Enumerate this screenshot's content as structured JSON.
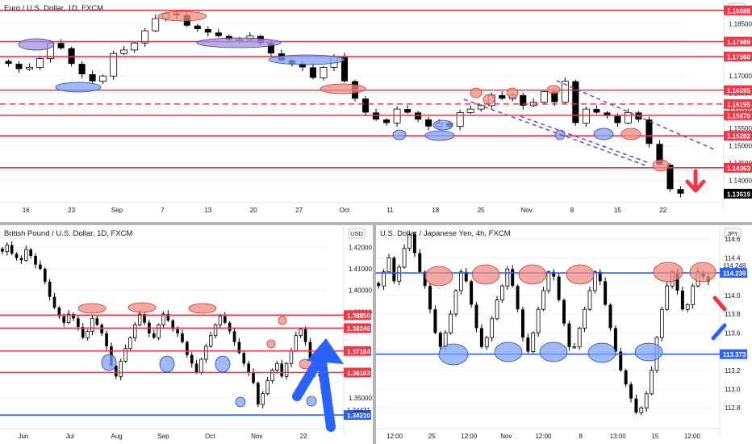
{
  "colors": {
    "red_line": "#f23645",
    "blue_line": "#2962ff",
    "red_ellipse": "#f28b82",
    "blue_ellipse": "#7fa3f5",
    "purple_ellipse": "#a290e0",
    "purple_dash": "#6a4bc4",
    "bull": "#ffffff",
    "bear": "#000000",
    "axis_text": "#131722",
    "grid": "#eef0f3"
  },
  "chart_data": [
    {
      "type": "candlestick",
      "title": "Euro / U.S. Dollar, 1D, FXCM",
      "currency": "USD",
      "ylim": [
        1.135,
        1.19
      ],
      "y_ticks": [
        1.14,
        1.145,
        1.15,
        1.155,
        1.16,
        1.165,
        1.17,
        1.175,
        1.18,
        1.185
      ],
      "x_labels": [
        "16",
        "23",
        "Sep",
        "7",
        "13",
        "20",
        "27",
        "Oct",
        "11",
        "18",
        "25",
        "Nov",
        "8",
        "15",
        "22"
      ],
      "red_levels": [
        1.18888,
        1.17989,
        1.1756,
        1.16595,
        1.16195,
        1.1587,
        1.15282,
        1.14363
      ],
      "dashed_level": 1.16195,
      "last_price": 1.13619,
      "arrow": "down",
      "closes": [
        1.1735,
        1.172,
        1.1725,
        1.175,
        1.1795,
        1.178,
        1.1735,
        1.1705,
        1.1685,
        1.17,
        1.1765,
        1.1775,
        1.1795,
        1.183,
        1.1865,
        1.188,
        1.1875,
        1.1845,
        1.1835,
        1.1825,
        1.1815,
        1.1805,
        1.1805,
        1.1815,
        1.1795,
        1.1765,
        1.1745,
        1.1735,
        1.1725,
        1.1695,
        1.1725,
        1.1755,
        1.1685,
        1.1635,
        1.1595,
        1.1575,
        1.1565,
        1.1605,
        1.1595,
        1.1575,
        1.1555,
        1.1565,
        1.1555,
        1.1595,
        1.1605,
        1.1615,
        1.1645,
        1.1635,
        1.1645,
        1.1615,
        1.1625,
        1.1655,
        1.1625,
        1.1685,
        1.1565,
        1.1605,
        1.1595,
        1.1585,
        1.1565,
        1.1595,
        1.1575,
        1.1505,
        1.1445,
        1.1375,
        1.1362
      ]
    },
    {
      "type": "candlestick",
      "title": "British Pound / U.S. Dollar, 1D, FXCM",
      "currency": "USD",
      "ylim": [
        1.338,
        1.428
      ],
      "y_ticks": [
        1.35,
        1.39,
        1.4,
        1.41,
        1.42
      ],
      "x_labels": [
        "Jun",
        "Jul",
        "Aug",
        "Sep",
        "Oct",
        "Nov",
        "22"
      ],
      "red_levels": [
        1.3885,
        1.38246,
        1.37184,
        1.36183
      ],
      "blue_level": 1.3421,
      "price_label": 1.34431,
      "arrow": "up",
      "closes": [
        1.418,
        1.421,
        1.417,
        1.415,
        1.414,
        1.419,
        1.416,
        1.412,
        1.41,
        1.404,
        1.397,
        1.392,
        1.388,
        1.385,
        1.389,
        1.387,
        1.383,
        1.378,
        1.381,
        1.387,
        1.384,
        1.38,
        1.374,
        1.365,
        1.36,
        1.367,
        1.373,
        1.378,
        1.384,
        1.389,
        1.385,
        1.38,
        1.378,
        1.384,
        1.389,
        1.386,
        1.382,
        1.38,
        1.376,
        1.37,
        1.366,
        1.362,
        1.368,
        1.374,
        1.379,
        1.384,
        1.388,
        1.385,
        1.381,
        1.376,
        1.371,
        1.366,
        1.362,
        1.357,
        1.347,
        1.352,
        1.358,
        1.363,
        1.366,
        1.36,
        1.366,
        1.372,
        1.379,
        1.382,
        1.376,
        1.368,
        1.361,
        1.36,
        1.363
      ]
    },
    {
      "type": "candlestick",
      "title": "U.S. Dollar / Japanese Yen, 4h, FXCM",
      "currency": "JPY",
      "ylim": [
        112.63,
        114.73
      ],
      "y_ticks": [
        112.8,
        113.0,
        113.2,
        113.6,
        113.8,
        114.0,
        114.4,
        114.6
      ],
      "x_labels": [
        "12:00",
        "25",
        "12:00",
        "Nov",
        "12:00",
        "8",
        "13:00",
        "15",
        "12:00"
      ],
      "blue_levels": [
        114.239,
        113.373
      ],
      "price_labels": [
        114.248,
        114.239,
        113.373
      ],
      "closes": [
        114.1,
        114.25,
        114.4,
        114.15,
        114.3,
        114.5,
        114.65,
        114.45,
        114.25,
        114.1,
        113.85,
        113.6,
        113.45,
        113.6,
        113.8,
        114.05,
        114.25,
        114.15,
        113.9,
        113.65,
        113.45,
        113.55,
        113.75,
        113.95,
        114.1,
        114.28,
        114.1,
        113.85,
        113.55,
        113.4,
        113.6,
        113.85,
        114.05,
        114.25,
        114.2,
        113.95,
        113.7,
        113.45,
        113.45,
        113.65,
        113.85,
        114.05,
        114.25,
        114.15,
        113.9,
        113.65,
        113.4,
        113.2,
        113.05,
        112.9,
        112.75,
        112.8,
        112.95,
        113.2,
        113.55,
        113.85,
        114.1,
        114.25,
        114.05,
        113.85,
        113.9,
        114.1,
        114.25,
        114.2,
        114.15
      ]
    }
  ]
}
